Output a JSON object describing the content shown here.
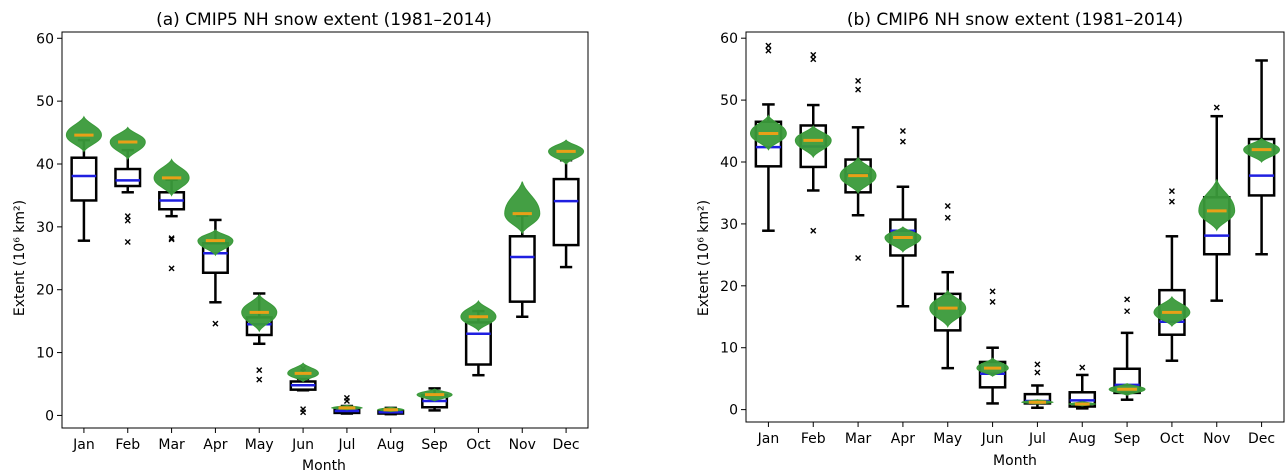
{
  "colors": {
    "box": "#000000",
    "median": "#1f1fe0",
    "obs_violin": "#3a9a3a",
    "obs_median": "#e8a017",
    "flier": "#000000"
  },
  "chart_data": [
    {
      "type": "box",
      "title": "(a) CMIP5 NH snow extent (1981–2014)",
      "xlabel": "Month",
      "ylabel": "Extent (10⁶ km²)",
      "ylim": [
        -2,
        61
      ],
      "yticks": [
        0,
        10,
        20,
        30,
        40,
        50,
        60
      ],
      "categories": [
        "Jan",
        "Feb",
        "Mar",
        "Apr",
        "May",
        "Jun",
        "Jul",
        "Aug",
        "Sep",
        "Oct",
        "Nov",
        "Dec"
      ],
      "grid": false,
      "boxes": [
        {
          "whislo": 27.8,
          "q1": 34.2,
          "med": 38.1,
          "q3": 41.0,
          "whishi": 43.8,
          "fliers": []
        },
        {
          "whislo": 35.5,
          "q1": 36.5,
          "med": 37.4,
          "q3": 39.2,
          "whishi": 42.2,
          "fliers": [
            31.7,
            31.0,
            27.6
          ]
        },
        {
          "whislo": 31.7,
          "q1": 32.8,
          "med": 34.2,
          "q3": 35.5,
          "whishi": 37.5,
          "fliers": [
            28.2,
            28.0,
            23.4
          ]
        },
        {
          "whislo": 18.0,
          "q1": 22.7,
          "med": 25.8,
          "q3": 27.4,
          "whishi": 31.1,
          "fliers": [
            14.6
          ]
        },
        {
          "whislo": 11.4,
          "q1": 12.8,
          "med": 14.5,
          "q3": 15.6,
          "whishi": 19.4,
          "fliers": [
            7.2,
            5.7
          ]
        },
        {
          "whislo": 4.0,
          "q1": 4.1,
          "med": 4.8,
          "q3": 5.4,
          "whishi": 5.8,
          "fliers": [
            7.5,
            7.0,
            1.0,
            0.5
          ]
        },
        {
          "whislo": 0.3,
          "q1": 0.4,
          "med": 0.7,
          "q3": 1.1,
          "whishi": 1.5,
          "fliers": [
            2.8,
            2.3
          ]
        },
        {
          "whislo": 0.2,
          "q1": 0.3,
          "med": 0.5,
          "q3": 0.7,
          "whishi": 1.2,
          "fliers": []
        },
        {
          "whislo": 0.8,
          "q1": 1.3,
          "med": 2.3,
          "q3": 3.2,
          "whishi": 4.3,
          "fliers": []
        },
        {
          "whislo": 6.4,
          "q1": 8.1,
          "med": 13.0,
          "q3": 14.8,
          "whishi": 16.6,
          "fliers": []
        },
        {
          "whislo": 15.7,
          "q1": 18.1,
          "med": 25.2,
          "q3": 28.5,
          "whishi": 31.8,
          "fliers": []
        },
        {
          "whislo": 23.6,
          "q1": 27.1,
          "med": 34.1,
          "q3": 37.6,
          "whishi": 40.6,
          "fliers": []
        }
      ],
      "obs_violins": [
        {
          "center": 44.6,
          "lo": 42.0,
          "hi": 47.5,
          "width": 0.4
        },
        {
          "center": 43.5,
          "lo": 40.8,
          "hi": 45.8,
          "width": 0.4
        },
        {
          "center": 37.8,
          "lo": 35.0,
          "hi": 40.7,
          "width": 0.4
        },
        {
          "center": 27.8,
          "lo": 25.5,
          "hi": 29.5,
          "width": 0.4
        },
        {
          "center": 16.4,
          "lo": 13.4,
          "hi": 19.2,
          "width": 0.4
        },
        {
          "center": 6.7,
          "lo": 5.4,
          "hi": 8.3,
          "width": 0.35
        },
        {
          "center": 1.2,
          "lo": 0.9,
          "hi": 1.6,
          "width": 0.35
        },
        {
          "center": 0.9,
          "lo": 0.6,
          "hi": 1.3,
          "width": 0.3
        },
        {
          "center": 3.3,
          "lo": 2.3,
          "hi": 4.2,
          "width": 0.4
        },
        {
          "center": 15.7,
          "lo": 13.5,
          "hi": 18.2,
          "width": 0.4
        },
        {
          "center": 32.1,
          "lo": 29.0,
          "hi": 37.2,
          "width": 0.4
        },
        {
          "center": 42.0,
          "lo": 40.0,
          "hi": 43.8,
          "width": 0.4
        }
      ]
    },
    {
      "type": "box",
      "title": "(b) CMIP6 NH snow extent (1981–2014)",
      "xlabel": "Month",
      "ylabel": "Extent (10⁶ km²)",
      "ylim": [
        -2,
        61
      ],
      "yticks": [
        0,
        10,
        20,
        30,
        40,
        50,
        60
      ],
      "categories": [
        "Jan",
        "Feb",
        "Mar",
        "Apr",
        "May",
        "Jun",
        "Jul",
        "Aug",
        "Sep",
        "Oct",
        "Nov",
        "Dec"
      ],
      "grid": false,
      "boxes": [
        {
          "whislo": 28.9,
          "q1": 39.3,
          "med": 42.4,
          "q3": 46.5,
          "whishi": 49.3,
          "fliers": [
            58.8,
            58.0
          ]
        },
        {
          "whislo": 35.4,
          "q1": 39.2,
          "med": 42.5,
          "q3": 45.9,
          "whishi": 49.2,
          "fliers": [
            57.3,
            56.6,
            28.9
          ]
        },
        {
          "whislo": 31.4,
          "q1": 35.1,
          "med": 38.0,
          "q3": 40.4,
          "whishi": 45.6,
          "fliers": [
            53.1,
            51.7,
            24.5
          ]
        },
        {
          "whislo": 16.7,
          "q1": 24.9,
          "med": 28.9,
          "q3": 30.7,
          "whishi": 36.0,
          "fliers": [
            45.0,
            43.3
          ]
        },
        {
          "whislo": 6.7,
          "q1": 12.8,
          "med": 16.3,
          "q3": 18.7,
          "whishi": 22.2,
          "fliers": [
            32.9,
            31.0
          ]
        },
        {
          "whislo": 1.0,
          "q1": 3.6,
          "med": 5.8,
          "q3": 7.7,
          "whishi": 10.0,
          "fliers": [
            19.1,
            17.4
          ]
        },
        {
          "whislo": 0.3,
          "q1": 1.0,
          "med": 1.4,
          "q3": 2.5,
          "whishi": 3.9,
          "fliers": [
            7.3,
            6.0
          ]
        },
        {
          "whislo": 0.2,
          "q1": 0.5,
          "med": 1.5,
          "q3": 2.8,
          "whishi": 5.6,
          "fliers": [
            6.8
          ]
        },
        {
          "whislo": 1.6,
          "q1": 2.7,
          "med": 4.0,
          "q3": 6.6,
          "whishi": 12.4,
          "fliers": [
            17.8,
            15.9
          ]
        },
        {
          "whislo": 7.9,
          "q1": 12.1,
          "med": 14.2,
          "q3": 19.3,
          "whishi": 28.0,
          "fliers": [
            35.3,
            33.6
          ]
        },
        {
          "whislo": 17.6,
          "q1": 25.1,
          "med": 28.1,
          "q3": 34.3,
          "whishi": 47.4,
          "fliers": [
            48.8
          ]
        },
        {
          "whislo": 25.1,
          "q1": 34.6,
          "med": 37.8,
          "q3": 43.7,
          "whishi": 56.4,
          "fliers": []
        }
      ],
      "obs_violins": [
        {
          "center": 44.6,
          "lo": 42.0,
          "hi": 47.5,
          "width": 0.4
        },
        {
          "center": 43.5,
          "lo": 40.8,
          "hi": 45.8,
          "width": 0.4
        },
        {
          "center": 37.8,
          "lo": 35.0,
          "hi": 40.7,
          "width": 0.4
        },
        {
          "center": 27.8,
          "lo": 25.5,
          "hi": 29.5,
          "width": 0.4
        },
        {
          "center": 16.4,
          "lo": 13.4,
          "hi": 19.2,
          "width": 0.4
        },
        {
          "center": 6.7,
          "lo": 5.4,
          "hi": 8.3,
          "width": 0.35
        },
        {
          "center": 1.2,
          "lo": 0.9,
          "hi": 1.6,
          "width": 0.35
        },
        {
          "center": 0.9,
          "lo": 0.6,
          "hi": 1.3,
          "width": 0.3
        },
        {
          "center": 3.3,
          "lo": 2.3,
          "hi": 4.2,
          "width": 0.4
        },
        {
          "center": 15.7,
          "lo": 13.5,
          "hi": 18.2,
          "width": 0.4
        },
        {
          "center": 32.1,
          "lo": 29.0,
          "hi": 37.2,
          "width": 0.4
        },
        {
          "center": 42.0,
          "lo": 40.0,
          "hi": 43.8,
          "width": 0.4
        }
      ]
    }
  ]
}
